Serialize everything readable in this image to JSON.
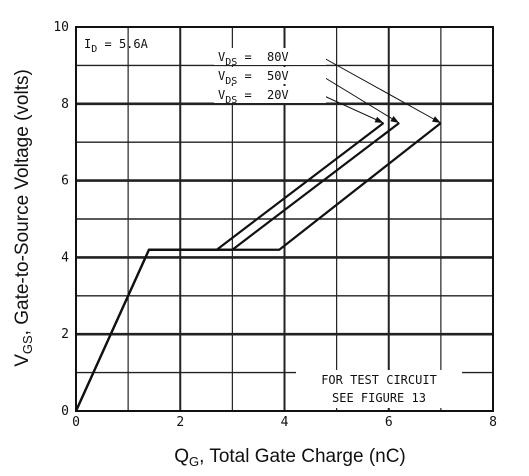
{
  "chart_data": {
    "type": "line",
    "title": "",
    "xlabel": {
      "main": "Q",
      "sub": "G",
      "rest": ", Total Gate Charge (nC)"
    },
    "ylabel": {
      "main": "V",
      "sub": "GS",
      "rest": ", Gate-to-Source Voltage (volts)"
    },
    "xlim": [
      0,
      8
    ],
    "ylim": [
      0,
      10
    ],
    "x_ticks": [
      "0",
      "2",
      "4",
      "6",
      "8"
    ],
    "y_ticks": [
      "0",
      "2",
      "4",
      "6",
      "8",
      "10"
    ],
    "grid": true,
    "series": [
      {
        "name": "V_DS = 80V",
        "x": [
          0,
          1.4,
          3.9,
          7.0
        ],
        "y": [
          0,
          4.2,
          4.2,
          7.5
        ]
      },
      {
        "name": "V_DS = 50V",
        "x": [
          0,
          1.4,
          3.0,
          6.2
        ],
        "y": [
          0,
          4.2,
          4.2,
          7.5
        ]
      },
      {
        "name": "V_DS = 20V",
        "x": [
          0,
          1.4,
          2.7,
          5.9
        ],
        "y": [
          0,
          4.2,
          4.2,
          7.5
        ]
      }
    ],
    "legend": [
      {
        "pre": "V",
        "sub": "DS",
        "mid": " = ",
        "val": "80V"
      },
      {
        "pre": "V",
        "sub": "DS",
        "mid": " = ",
        "val": "50V"
      },
      {
        "pre": "V",
        "sub": "DS",
        "mid": " = ",
        "val": "20V"
      }
    ],
    "annotations": {
      "id_label": {
        "pre": "I",
        "sub": "D",
        "post": " = 5.6A"
      },
      "test_circuit": [
        "FOR TEST CIRCUIT",
        "SEE FIGURE 13"
      ]
    }
  }
}
